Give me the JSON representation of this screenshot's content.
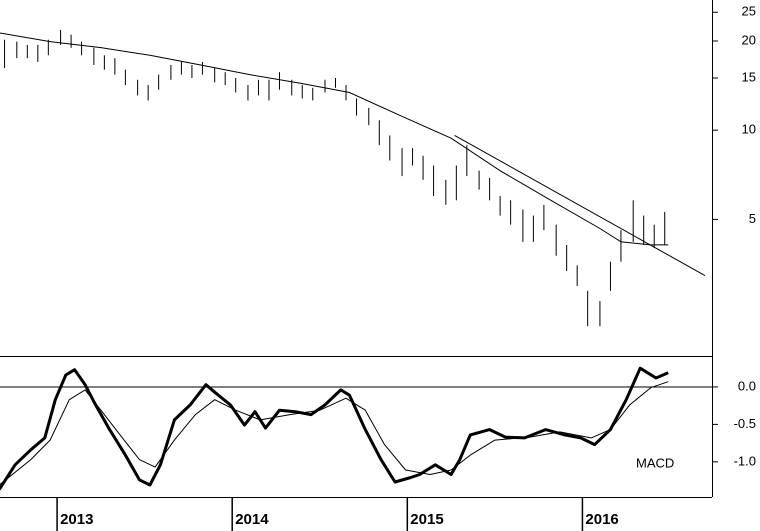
{
  "chart_data": [
    {
      "type": "stock",
      "log_scale": true,
      "color": "#000000",
      "xlim": [
        2012.674,
        2016.74
      ],
      "ylim": [
        1.73,
        27.5
      ],
      "yticks": [
        5,
        10,
        15,
        20,
        25
      ],
      "x": [
        2012.7,
        2012.77,
        2012.83,
        2012.89,
        2012.95,
        2013.02,
        2013.08,
        2013.14,
        2013.21,
        2013.27,
        2013.33,
        2013.39,
        2013.46,
        2013.52,
        2013.58,
        2013.65,
        2013.71,
        2013.77,
        2013.83,
        2013.9,
        2013.96,
        2014.02,
        2014.09,
        2014.15,
        2014.21,
        2014.27,
        2014.34,
        2014.4,
        2014.46,
        2014.53,
        2014.59,
        2014.65,
        2014.71,
        2014.78,
        2014.84,
        2014.9,
        2014.97,
        2015.03,
        2015.09,
        2015.15,
        2015.22,
        2015.28,
        2015.34,
        2015.41,
        2015.47,
        2015.53,
        2015.59,
        2015.66,
        2015.72,
        2015.78,
        2015.85,
        2015.91,
        2015.97,
        2016.03,
        2016.1,
        2016.16,
        2016.22,
        2016.29,
        2016.35,
        2016.41,
        2016.47
      ],
      "high": [
        20.2,
        19.9,
        19.4,
        19.4,
        20.2,
        21.8,
        21.0,
        19.9,
        18.97,
        17.9,
        17.5,
        16.0,
        14.8,
        14.2,
        15.4,
        16.6,
        17.0,
        16.6,
        17.0,
        16.2,
        15.7,
        15.0,
        14.2,
        14.8,
        14.8,
        15.7,
        14.8,
        14.2,
        13.9,
        14.8,
        15.0,
        14.2,
        12.8,
        11.9,
        10.8,
        9.6,
        8.7,
        8.7,
        8.2,
        7.6,
        6.8,
        7.6,
        8.9,
        7.3,
        6.9,
        6.0,
        5.8,
        5.4,
        5.15,
        5.6,
        4.8,
        4.1,
        3.5,
        2.87,
        2.65,
        3.6,
        4.6,
        5.8,
        5.15,
        4.8,
        5.3
      ],
      "low": [
        16.2,
        17.5,
        17.5,
        17.0,
        17.9,
        19.4,
        18.97,
        17.9,
        16.6,
        16.0,
        15.4,
        14.2,
        13.1,
        12.6,
        13.7,
        14.8,
        15.4,
        15.0,
        15.4,
        14.5,
        14.2,
        13.4,
        12.6,
        13.1,
        12.6,
        13.7,
        13.1,
        12.8,
        12.6,
        13.4,
        13.9,
        12.6,
        11.2,
        10.4,
        8.9,
        7.9,
        7.0,
        7.6,
        6.8,
        6.0,
        5.6,
        5.8,
        7.0,
        6.3,
        5.8,
        5.15,
        4.8,
        4.2,
        4.2,
        4.6,
        3.77,
        3.35,
        2.98,
        2.18,
        2.18,
        2.87,
        3.6,
        4.2,
        4.1,
        4.0,
        4.1
      ],
      "lines": [
        {
          "x": [
            2012.67,
            2012.96,
            2013.25,
            2013.53,
            2013.82,
            2014.1,
            2014.39,
            2014.67,
            2014.96,
            2015.25,
            2015.53,
            2015.82,
            2016.1,
            2016.22,
            2016.39,
            2016.49
          ],
          "values": [
            21.3,
            19.9,
            19.0,
            17.9,
            16.6,
            15.4,
            14.4,
            13.4,
            11.2,
            9.4,
            7.3,
            5.8,
            4.66,
            4.2,
            4.1,
            4.1
          ]
        },
        {
          "x": [
            2015.27,
            2016.7
          ],
          "values": [
            9.6,
            3.23
          ]
        }
      ]
    },
    {
      "type": "line",
      "label": "MACD",
      "xlim": [
        2012.674,
        2016.74
      ],
      "ylim": [
        -1.47,
        0.4
      ],
      "yticks": [
        {
          "value": 0,
          "label": "0.0"
        },
        {
          "value": -0.5,
          "label": "-0.5"
        },
        {
          "value": -1,
          "label": "-1.0"
        }
      ],
      "xticks": [
        2013,
        2014,
        2015,
        2016
      ],
      "zero_line": true,
      "series": [
        {
          "color": "#000000",
          "width": 3,
          "x": [
            2012.67,
            2012.76,
            2012.85,
            2012.93,
            2012.99,
            2013.05,
            2013.1,
            2013.16,
            2013.22,
            2013.3,
            2013.39,
            2013.47,
            2013.53,
            2013.59,
            2013.67,
            2013.76,
            2013.85,
            2013.9,
            2013.99,
            2014.07,
            2014.13,
            2014.19,
            2014.27,
            2014.36,
            2014.45,
            2014.53,
            2014.62,
            2014.67,
            2014.76,
            2014.85,
            2014.93,
            2015.02,
            2015.07,
            2015.16,
            2015.25,
            2015.3,
            2015.36,
            2015.47,
            2015.56,
            2015.67,
            2015.79,
            2015.9,
            2015.99,
            2016.07,
            2016.16,
            2016.25,
            2016.33,
            2016.42,
            2016.49
          ],
          "values": [
            -1.37,
            -1.04,
            -0.84,
            -0.68,
            -0.17,
            0.16,
            0.23,
            0.03,
            -0.24,
            -0.57,
            -0.91,
            -1.24,
            -1.31,
            -1.04,
            -0.44,
            -0.24,
            0.03,
            -0.07,
            -0.24,
            -0.51,
            -0.33,
            -0.55,
            -0.31,
            -0.33,
            -0.37,
            -0.24,
            -0.04,
            -0.11,
            -0.57,
            -0.97,
            -1.27,
            -1.21,
            -1.17,
            -1.04,
            -1.17,
            -0.97,
            -0.64,
            -0.57,
            -0.67,
            -0.68,
            -0.57,
            -0.64,
            -0.68,
            -0.77,
            -0.57,
            -0.17,
            0.25,
            0.12,
            0.19
          ]
        },
        {
          "color": "#000000",
          "width": 1,
          "x": [
            2012.67,
            2012.85,
            2012.96,
            2013.07,
            2013.16,
            2013.25,
            2013.36,
            2013.47,
            2013.56,
            2013.67,
            2013.79,
            2013.9,
            2014.02,
            2014.16,
            2014.33,
            2014.5,
            2014.65,
            2014.76,
            2014.87,
            2014.99,
            2015.13,
            2015.25,
            2015.36,
            2015.5,
            2015.7,
            2015.87,
            2016.05,
            2016.16,
            2016.27,
            2016.39,
            2016.49
          ],
          "values": [
            -1.31,
            -0.97,
            -0.71,
            -0.17,
            -0.04,
            -0.31,
            -0.64,
            -0.97,
            -1.07,
            -0.71,
            -0.37,
            -0.17,
            -0.31,
            -0.44,
            -0.37,
            -0.31,
            -0.15,
            -0.31,
            -0.77,
            -1.11,
            -1.17,
            -1.11,
            -0.91,
            -0.71,
            -0.67,
            -0.6,
            -0.68,
            -0.57,
            -0.24,
            -0.01,
            0.07
          ]
        }
      ]
    }
  ]
}
